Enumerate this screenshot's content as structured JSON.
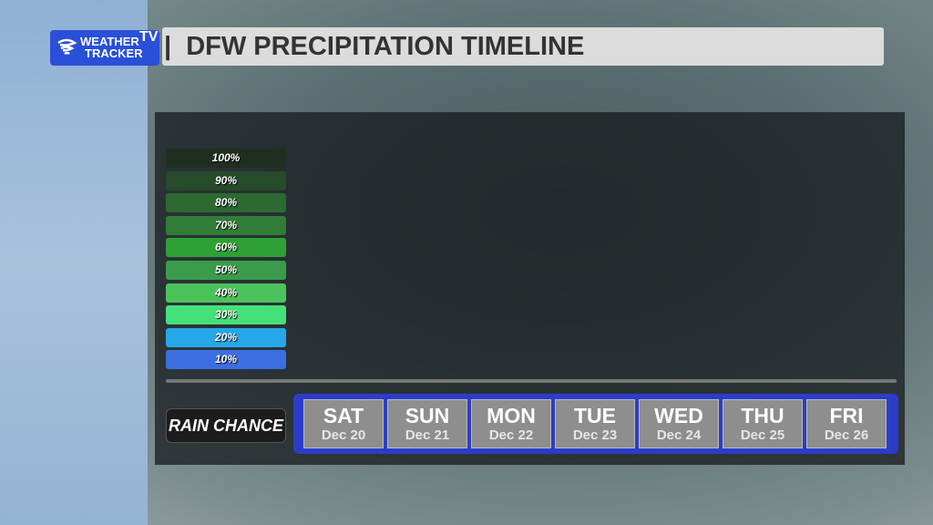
{
  "logo": {
    "line1": "WEATHER",
    "line2": "TRACKER",
    "badge": "TV"
  },
  "title": "DFW PRECIPITATION TIMELINE",
  "scale": [
    {
      "label": "100%",
      "color": "#1f2f1f"
    },
    {
      "label": "90%",
      "color": "#264a2a"
    },
    {
      "label": "80%",
      "color": "#2c6a32"
    },
    {
      "label": "70%",
      "color": "#2f7d36"
    },
    {
      "label": "60%",
      "color": "#2fa033"
    },
    {
      "label": "50%",
      "color": "#3a9c4a"
    },
    {
      "label": "40%",
      "color": "#4cc25a"
    },
    {
      "label": "30%",
      "color": "#46e07a"
    },
    {
      "label": "20%",
      "color": "#25a8e8"
    },
    {
      "label": "10%",
      "color": "#3b6fe0"
    }
  ],
  "row_label": "RAIN CHANCE",
  "days": [
    {
      "day": "SAT",
      "date": "Dec 20"
    },
    {
      "day": "SUN",
      "date": "Dec 21"
    },
    {
      "day": "MON",
      "date": "Dec 22"
    },
    {
      "day": "TUE",
      "date": "Dec 23"
    },
    {
      "day": "WED",
      "date": "Dec 24"
    },
    {
      "day": "THU",
      "date": "Dec 25"
    },
    {
      "day": "FRI",
      "date": "Dec 26"
    }
  ]
}
